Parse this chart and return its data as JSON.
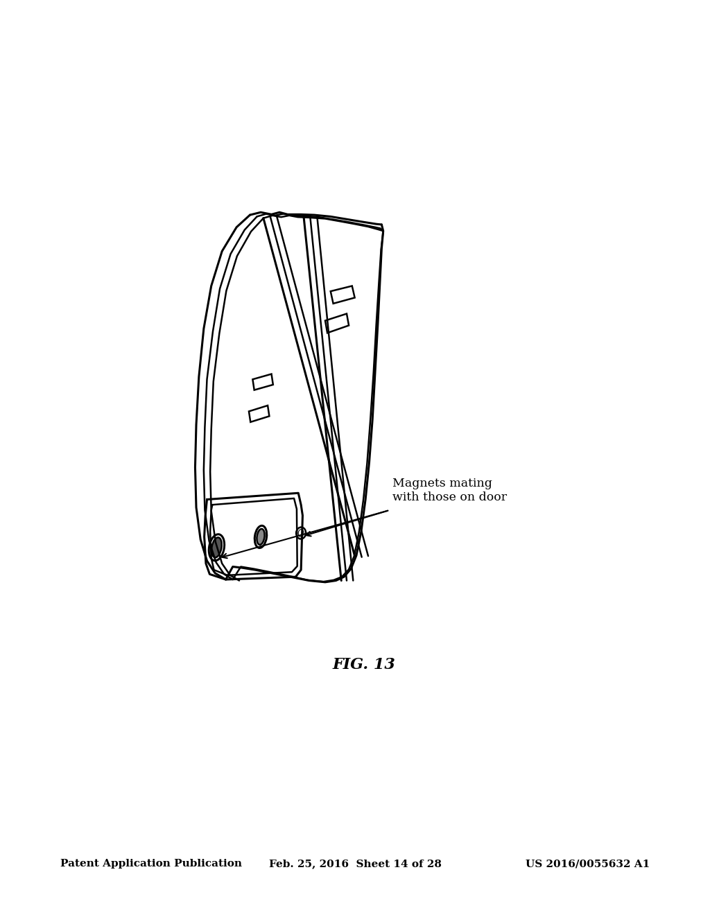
{
  "bg_color": "#ffffff",
  "header_left": "Patent Application Publication",
  "header_mid": "Feb. 25, 2016  Sheet 14 of 28",
  "header_right": "US 2016/0055632 A1",
  "fig_label": "FIG. 13",
  "annotation_text": "Magnets mating\nwith those on door",
  "header_fontsize": 11,
  "fig_label_fontsize": 16,
  "annotation_fontsize": 12.5
}
